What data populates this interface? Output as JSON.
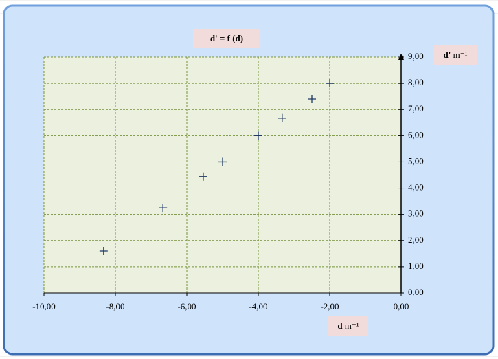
{
  "chart_data": {
    "type": "scatter",
    "title": "d' = f (d)",
    "x_label": "d",
    "x_unit": "m⁻¹",
    "y_label": "d'",
    "y_unit": "m⁻¹",
    "series": [
      {
        "name": "d'",
        "color": "#1f3864",
        "x": [
          -8.33,
          -6.67,
          -5.54,
          -5.0,
          -4.0,
          -3.33,
          -2.5,
          -2.0
        ],
        "values": [
          1.6,
          3.25,
          4.44,
          5.0,
          6.0,
          6.67,
          7.4,
          8.0
        ]
      }
    ],
    "xlim": [
      -10,
      0
    ],
    "xticks": [
      {
        "value": -10,
        "label": "-10,00"
      },
      {
        "value": -8,
        "label": "-8,00"
      },
      {
        "value": -6,
        "label": "-6,00"
      },
      {
        "value": -4,
        "label": "-4,00"
      },
      {
        "value": -2,
        "label": "-2,00"
      },
      {
        "value": 0,
        "label": "0,00"
      }
    ],
    "ylim": [
      0,
      9
    ],
    "yticks": [
      {
        "value": 0,
        "label": "0,00"
      },
      {
        "value": 1,
        "label": "1,00"
      },
      {
        "value": 2,
        "label": "2,00"
      },
      {
        "value": 3,
        "label": "3,00"
      },
      {
        "value": 4,
        "label": "4,00"
      },
      {
        "value": 5,
        "label": "5,00"
      },
      {
        "value": 6,
        "label": "6,00"
      },
      {
        "value": 7,
        "label": "7,00"
      },
      {
        "value": 8,
        "label": "8,00"
      },
      {
        "value": 9,
        "label": "9,00"
      }
    ],
    "grid": true
  }
}
